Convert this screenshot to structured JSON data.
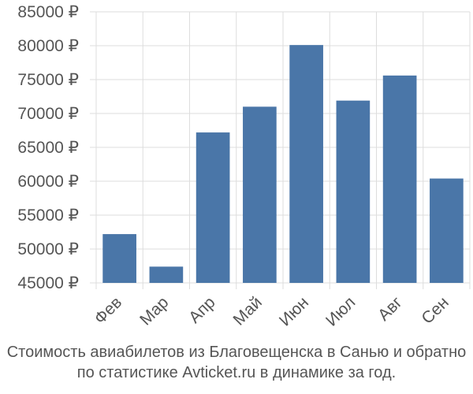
{
  "chart_data": {
    "type": "bar",
    "categories": [
      "Фев",
      "Мар",
      "Апр",
      "Май",
      "Июн",
      "Июл",
      "Авг",
      "Сен"
    ],
    "values": [
      52200,
      47400,
      67200,
      71000,
      80100,
      71900,
      75600,
      60400
    ],
    "ylim": [
      45000,
      85000
    ],
    "yticks": [
      45000,
      50000,
      55000,
      60000,
      65000,
      70000,
      75000,
      80000,
      85000
    ],
    "ytick_labels": [
      "45000 ₽",
      "50000 ₽",
      "55000 ₽",
      "60000 ₽",
      "65000 ₽",
      "70000 ₽",
      "75000 ₽",
      "80000 ₽",
      "85000 ₽"
    ],
    "grid": true,
    "bar_color": "#4a76a8",
    "grid_color": "#dddddd",
    "title": "",
    "xlabel": "",
    "ylabel": ""
  },
  "caption": {
    "line1": "Стоимость авиабилетов из Благовещенска в Санью и обратно",
    "line2": "по статистике Avticket.ru в динамике за год."
  }
}
